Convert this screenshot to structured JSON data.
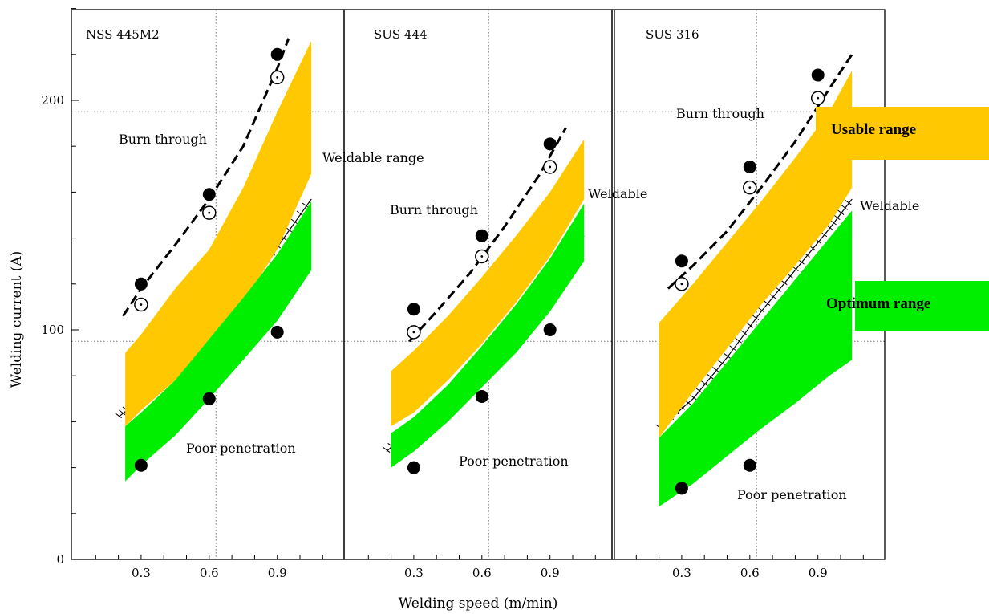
{
  "chart_data": {
    "type": "area",
    "ylabel": "Welding current (A)",
    "xlabel": "Welding speed (m/min)",
    "y_ticks": [
      "0",
      "100",
      "200"
    ],
    "ylim": [
      0,
      240
    ],
    "xlim": [
      0.0,
      1.12
    ],
    "grid": "dotted reference lines at 95 A and 195 A, and at 0.63 m/min",
    "colors": {
      "usable": "#FFC800",
      "optimum": "#00EE00",
      "marker": "#000000",
      "curve": "#000000"
    },
    "legend": {
      "placement": "right",
      "entries": [
        {
          "label": "Usable range",
          "color": "#FFC800"
        },
        {
          "label": "Optimum range",
          "color": "#00EE00"
        }
      ]
    },
    "panels": [
      {
        "title": "NSS 445M2",
        "x_ticks": [
          "0.3",
          "0.6",
          "0.9"
        ],
        "labels": {
          "upper": "Burn through",
          "middle": "Weldable  range",
          "lower": "Poor penetration"
        },
        "burn_through_curve": {
          "x": [
            0.22,
            0.3,
            0.45,
            0.6,
            0.75,
            0.9,
            0.95
          ],
          "y": [
            106,
            118,
            137,
            157,
            180,
            214,
            227
          ]
        },
        "lower_boundary_curve": {
          "x": [
            0.2,
            0.3,
            0.45,
            0.6,
            0.75,
            0.9,
            1.05
          ],
          "y": [
            62,
            70,
            84,
            100,
            117,
            136,
            157
          ]
        },
        "usable_band": {
          "x": [
            0.23,
            0.3,
            0.45,
            0.6,
            0.75,
            0.9,
            1.05
          ],
          "upper": [
            90,
            98,
            118,
            135,
            162,
            195,
            226
          ],
          "lower": [
            58,
            65,
            78,
            94,
            112,
            135,
            168
          ]
        },
        "optimum_band": {
          "x": [
            0.23,
            0.3,
            0.45,
            0.6,
            0.75,
            0.9,
            1.05
          ],
          "upper": [
            58,
            64,
            78,
            96,
            114,
            133,
            156
          ],
          "lower": [
            34,
            41,
            54,
            70,
            87,
            104,
            126
          ]
        },
        "filled_points": {
          "x": [
            0.3,
            0.6,
            0.9,
            0.3,
            0.6,
            0.9
          ],
          "y": [
            120,
            159,
            220,
            41,
            70,
            99
          ]
        },
        "open_points": {
          "x": [
            0.3,
            0.6,
            0.9
          ],
          "y": [
            111,
            151,
            210
          ]
        }
      },
      {
        "title": "SUS 444",
        "x_ticks": [
          "0.3",
          "0.6",
          "0.9"
        ],
        "labels": {
          "upper": "Burn through",
          "middle": "Weldable",
          "lower": "Poor penetration"
        },
        "burn_through_curve": {
          "x": [
            0.28,
            0.4,
            0.55,
            0.7,
            0.85,
            0.97
          ],
          "y": [
            95,
            108,
            125,
            145,
            167,
            188
          ]
        },
        "lower_boundary_curve": {
          "x": [
            0.18,
            0.3,
            0.45,
            0.6,
            0.75,
            0.9,
            1.05
          ],
          "y": [
            47,
            58,
            72,
            88,
            104,
            122,
            141
          ]
        },
        "usable_band": {
          "x": [
            0.2,
            0.3,
            0.45,
            0.6,
            0.75,
            0.9,
            1.05
          ],
          "upper": [
            82,
            91,
            106,
            123,
            141,
            160,
            183
          ],
          "lower": [
            58,
            64,
            78,
            94,
            112,
            132,
            157
          ]
        },
        "optimum_band": {
          "x": [
            0.2,
            0.3,
            0.45,
            0.6,
            0.75,
            0.9,
            1.05
          ],
          "upper": [
            55,
            62,
            76,
            93,
            111,
            131,
            155
          ],
          "lower": [
            40,
            47,
            60,
            75,
            90,
            108,
            130
          ]
        },
        "filled_points": {
          "x": [
            0.3,
            0.6,
            0.9,
            0.3,
            0.6,
            0.9
          ],
          "y": [
            109,
            141,
            181,
            40,
            71,
            100
          ]
        },
        "open_points": {
          "x": [
            0.3,
            0.6,
            0.9
          ],
          "y": [
            99,
            132,
            171
          ]
        }
      },
      {
        "title": "SUS 316",
        "x_ticks": [
          "0.3",
          "0.6",
          "0.9"
        ],
        "labels": {
          "upper": "Burn through",
          "middle": "Weldable",
          "lower": "Poor penetration"
        },
        "burn_through_curve": {
          "x": [
            0.24,
            0.35,
            0.5,
            0.65,
            0.8,
            0.95,
            1.05
          ],
          "y": [
            118,
            128,
            143,
            162,
            182,
            205,
            220
          ]
        },
        "lower_boundary_curve": {
          "x": [
            0.2,
            0.35,
            0.5,
            0.65,
            0.8,
            0.95,
            1.05
          ],
          "y": [
            57,
            70,
            88,
            108,
            126,
            144,
            157
          ]
        },
        "usable_band": {
          "x": [
            0.2,
            0.35,
            0.5,
            0.65,
            0.8,
            0.95,
            1.05
          ],
          "upper": [
            103,
            120,
            138,
            156,
            175,
            195,
            213
          ],
          "lower": [
            53,
            73,
            92,
            111,
            128,
            146,
            162
          ]
        },
        "optimum_band": {
          "x": [
            0.2,
            0.35,
            0.5,
            0.65,
            0.8,
            0.95,
            1.05
          ],
          "upper": [
            53,
            68,
            86,
            104,
            122,
            140,
            152
          ],
          "lower": [
            23,
            33,
            45,
            57,
            68,
            80,
            87
          ]
        },
        "filled_points": {
          "x": [
            0.3,
            0.6,
            0.9,
            0.3,
            0.6
          ],
          "y": [
            130,
            171,
            211,
            31,
            41
          ]
        },
        "open_points": {
          "x": [
            0.3,
            0.6,
            0.9
          ],
          "y": [
            120,
            162,
            201
          ]
        }
      }
    ]
  }
}
